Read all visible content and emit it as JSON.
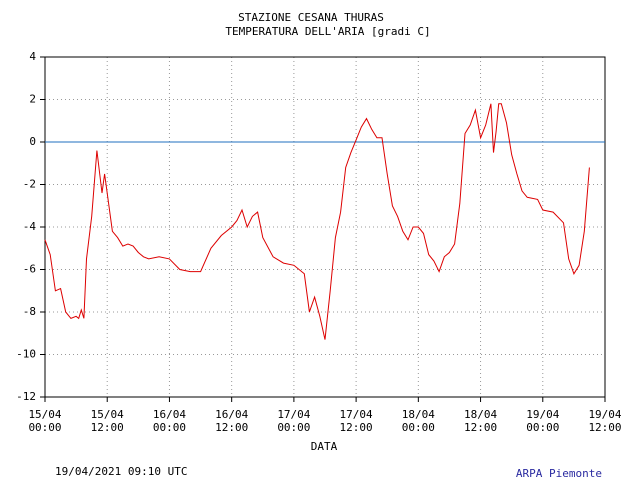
{
  "chart_data": {
    "type": "line",
    "title": "STAZIONE CESANA THURAS",
    "subtitle": "TEMPERATURA DELL'ARIA [gradi C]",
    "x_label": "DATA",
    "timestamp": "19/04/2021 09:10 UTC",
    "source": "ARPA Piemonte",
    "grid": true,
    "hline": {
      "value": 0,
      "color": "#1f6fbf"
    },
    "xlim": [
      "15/04 00:00",
      "19/04 12:00"
    ],
    "xticks": [
      "15/04 00:00",
      "15/04 12:00",
      "16/04 00:00",
      "16/04 12:00",
      "17/04 00:00",
      "17/04 12:00",
      "18/04 00:00",
      "18/04 12:00",
      "19/04 00:00",
      "19/04 12:00"
    ],
    "ylim": [
      -12,
      4
    ],
    "yticks": [
      -12,
      -10,
      -8,
      -6,
      -4,
      -2,
      0,
      2,
      4
    ],
    "x": [
      "15/04 00:00",
      "15/04 01:00",
      "15/04 02:00",
      "15/04 03:00",
      "15/04 04:00",
      "15/04 05:00",
      "15/04 06:00",
      "15/04 06:30",
      "15/04 07:00",
      "15/04 07:30",
      "15/04 08:00",
      "15/04 09:00",
      "15/04 10:00",
      "15/04 11:00",
      "15/04 11:30",
      "15/04 13:00",
      "15/04 14:00",
      "15/04 15:00",
      "15/04 16:00",
      "15/04 17:00",
      "15/04 18:00",
      "15/04 19:00",
      "15/04 20:00",
      "15/04 22:00",
      "16/04 00:00",
      "16/04 02:00",
      "16/04 04:00",
      "16/04 06:00",
      "16/04 08:00",
      "16/04 10:00",
      "16/04 12:00",
      "16/04 13:00",
      "16/04 14:00",
      "16/04 15:00",
      "16/04 16:00",
      "16/04 17:00",
      "16/04 18:00",
      "16/04 20:00",
      "16/04 22:00",
      "17/04 00:00",
      "17/04 02:00",
      "17/04 03:00",
      "17/04 04:00",
      "17/04 05:00",
      "17/04 06:00",
      "17/04 07:00",
      "17/04 08:00",
      "17/04 09:00",
      "17/04 10:00",
      "17/04 11:00",
      "17/04 12:00",
      "17/04 13:00",
      "17/04 14:00",
      "17/04 15:00",
      "17/04 16:00",
      "17/04 17:00",
      "17/04 18:00",
      "17/04 19:00",
      "17/04 20:00",
      "17/04 21:00",
      "17/04 22:00",
      "17/04 23:00",
      "18/04 00:00",
      "18/04 01:00",
      "18/04 02:00",
      "18/04 03:00",
      "18/04 04:00",
      "18/04 05:00",
      "18/04 06:00",
      "18/04 07:00",
      "18/04 08:00",
      "18/04 09:00",
      "18/04 10:00",
      "18/04 11:00",
      "18/04 12:00",
      "18/04 13:00",
      "18/04 14:00",
      "18/04 14:30",
      "18/04 15:00",
      "18/04 15:30",
      "18/04 16:00",
      "18/04 17:00",
      "18/04 18:00",
      "18/04 19:00",
      "18/04 20:00",
      "18/04 21:00",
      "18/04 23:00",
      "19/04 00:00",
      "19/04 02:00",
      "19/04 04:00",
      "19/04 05:00",
      "19/04 06:00",
      "19/04 07:00",
      "19/04 08:00",
      "19/04 09:00"
    ],
    "series": [
      {
        "name": "Temperatura",
        "color": "#dd0000",
        "values": [
          -4.6,
          -5.3,
          -7.0,
          -6.9,
          -8.0,
          -8.3,
          -8.2,
          -8.3,
          -7.9,
          -8.3,
          -5.5,
          -3.5,
          -0.4,
          -2.4,
          -1.5,
          -4.2,
          -4.5,
          -4.9,
          -4.8,
          -4.9,
          -5.2,
          -5.4,
          -5.5,
          -5.4,
          -5.5,
          -6.0,
          -6.1,
          -6.1,
          -5.0,
          -4.4,
          -4.0,
          -3.7,
          -3.2,
          -4.0,
          -3.5,
          -3.3,
          -4.5,
          -5.4,
          -5.7,
          -5.8,
          -6.2,
          -8.0,
          -7.3,
          -8.2,
          -9.3,
          -7.0,
          -4.5,
          -3.3,
          -1.2,
          -0.5,
          0.1,
          0.7,
          1.1,
          0.6,
          0.2,
          0.2,
          -1.5,
          -3.0,
          -3.5,
          -4.2,
          -4.6,
          -4.0,
          -4.0,
          -4.3,
          -5.3,
          -5.6,
          -6.1,
          -5.4,
          -5.2,
          -4.8,
          -2.9,
          0.4,
          0.8,
          1.5,
          0.2,
          0.8,
          1.8,
          -0.5,
          0.5,
          1.8,
          1.8,
          0.9,
          -0.6,
          -1.5,
          -2.3,
          -2.6,
          -2.7,
          -3.2,
          -3.3,
          -3.8,
          -5.5,
          -6.2,
          -5.8,
          -4.2,
          -1.2
        ]
      }
    ]
  }
}
